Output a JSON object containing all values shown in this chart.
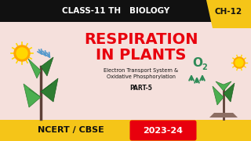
{
  "bg_color": "#f5e0dc",
  "top_bar_color": "#111111",
  "bottom_bar_color": "#f5c518",
  "top_text": "CLASS-11 TH   BIOLOGY",
  "ch_box_color": "#f5c518",
  "ch_text": "CH-12",
  "main_title_line1": "RESPIRATION",
  "main_title_line2": "IN PLANTS",
  "main_title_color": "#e8000d",
  "sub_text_line1": "Electron Transport System &",
  "sub_text_line2": "Oxidative Phosphorylation",
  "part_text": "PART-5",
  "ncert_text": "NCERT / CBSE",
  "year_text": "2023-24",
  "year_box_color": "#e8000d",
  "o2_color": "#2e8b57",
  "sun_color": "#FFA500",
  "sun_inner_color": "#FFD700",
  "leaf_color1": "#4caf50",
  "leaf_color2": "#2e7d32",
  "stem_color": "#5d4037",
  "arrow_blue": "#6699cc",
  "top_bar_height": 28,
  "bottom_bar_height": 27
}
